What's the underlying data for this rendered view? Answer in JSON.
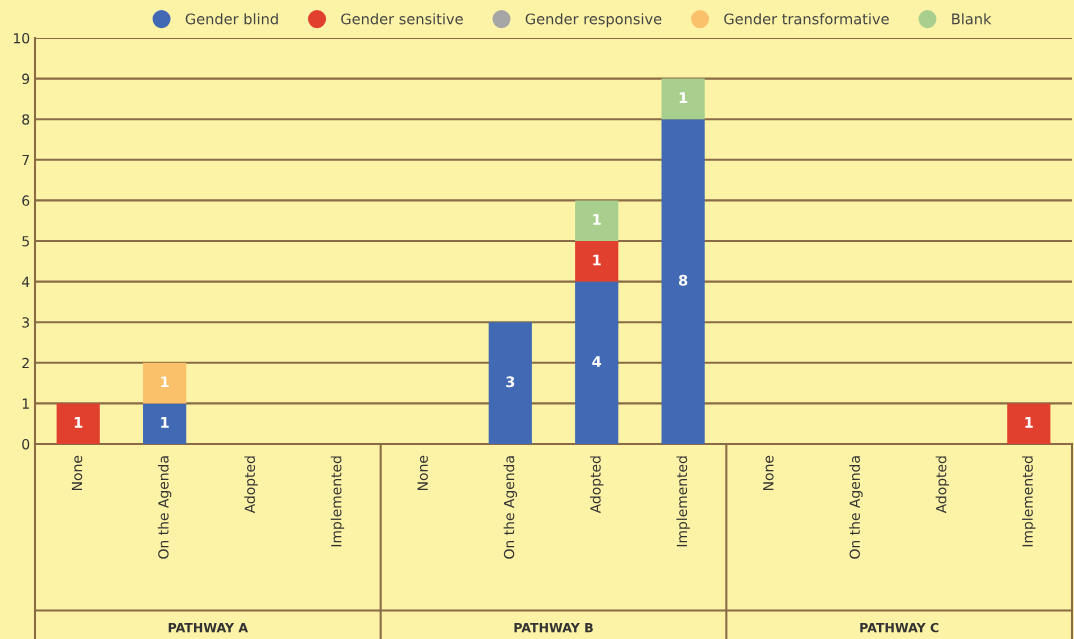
{
  "chart_data": {
    "type": "bar",
    "stacked": true,
    "data_labels": true,
    "legend": "top",
    "marker": "circle",
    "grid": "y",
    "categories": [
      "None",
      "On the Agenda",
      "Adopted",
      "Implemented",
      "None",
      "On the Agenda",
      "Adopted",
      "Implemented",
      "None",
      "On the Agenda",
      "Adopted",
      "Implemented"
    ],
    "annotations": [
      "PATHWAY A",
      "PATHWAY B",
      "PATHWAY C"
    ],
    "ylim": [
      0,
      10
    ],
    "yticks": [
      0,
      1,
      2,
      3,
      4,
      5,
      6,
      7,
      8,
      9,
      10
    ],
    "series": [
      {
        "name": "Gender blind",
        "color": "#4169b4",
        "values": [
          null,
          1,
          null,
          null,
          null,
          3,
          4,
          8,
          null,
          null,
          null,
          null
        ]
      },
      {
        "name": "Gender sensitive",
        "color": "#e2402f",
        "values": [
          1,
          null,
          null,
          null,
          null,
          null,
          1,
          null,
          null,
          null,
          null,
          1
        ]
      },
      {
        "name": "Gender responsive",
        "color": "#a6a6a6",
        "values": [
          null,
          null,
          null,
          null,
          null,
          null,
          null,
          null,
          null,
          null,
          null,
          null
        ]
      },
      {
        "name": "Gender transformative",
        "color": "#fbc16a",
        "values": [
          null,
          1,
          null,
          null,
          null,
          null,
          null,
          null,
          null,
          null,
          null,
          null
        ]
      },
      {
        "name": "Blank",
        "color": "#a9cf8f",
        "values": [
          null,
          null,
          null,
          null,
          null,
          null,
          1,
          1,
          null,
          null,
          null,
          null
        ]
      }
    ]
  }
}
